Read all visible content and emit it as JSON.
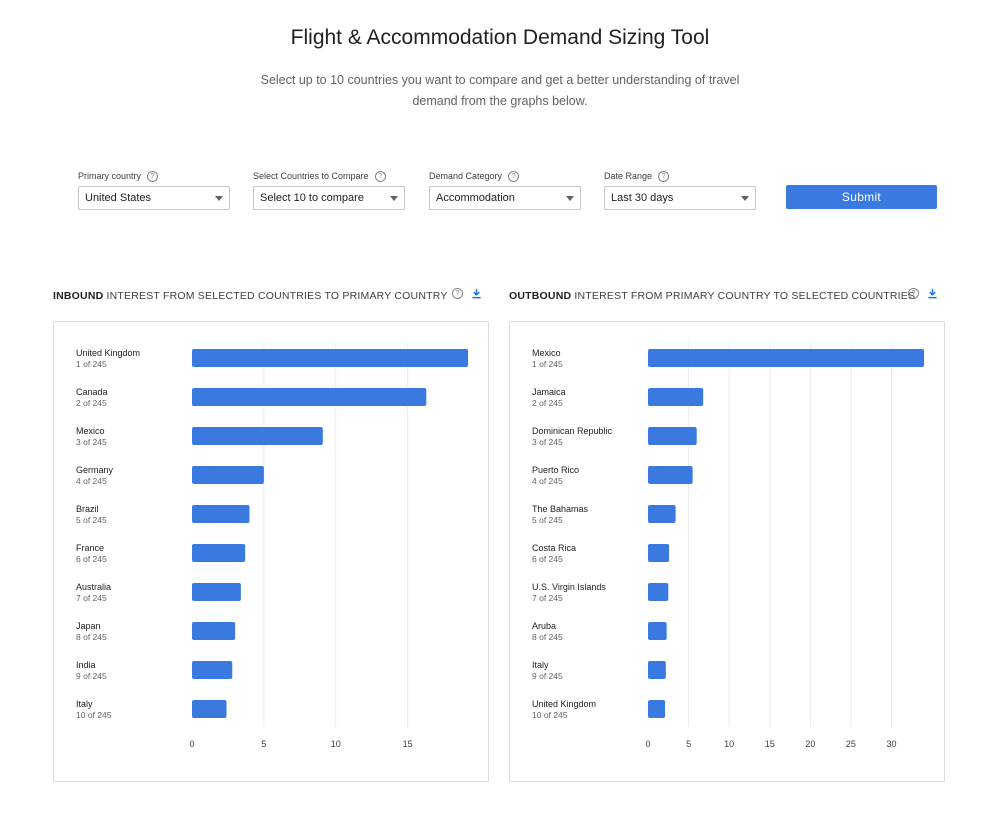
{
  "header": {
    "title": "Flight & Accommodation Demand Sizing Tool",
    "subtitle": "Select up to 10 countries you want to compare and get a better understanding of travel demand from the graphs below."
  },
  "filters": {
    "primary": {
      "label": "Primary country",
      "value": "United States"
    },
    "compare": {
      "label": "Select Countries to Compare",
      "value": "Select 10 to compare"
    },
    "category": {
      "label": "Demand Category",
      "value": "Accommodation"
    },
    "date": {
      "label": "Date Range",
      "value": "Last 30 days"
    },
    "submit_label": "Submit"
  },
  "colors": {
    "bar": "#3a7ae0",
    "grid": "#e8eaed"
  },
  "chart_data": [
    {
      "type": "bar",
      "orientation": "horizontal",
      "title_bold": "INBOUND",
      "title_rest": " INTEREST FROM SELECTED COUNTRIES TO PRIMARY COUNTRY",
      "categories": [
        "United Kingdom",
        "Canada",
        "Mexico",
        "Germany",
        "Brazil",
        "France",
        "Australia",
        "Japan",
        "India",
        "Italy"
      ],
      "ranks": [
        "1 of 245",
        "2 of 245",
        "3 of 245",
        "4 of 245",
        "5 of 245",
        "6 of 245",
        "7 of 245",
        "8 of 245",
        "9 of 245",
        "10 of 245"
      ],
      "values": [
        19.2,
        16.3,
        9.1,
        5.0,
        4.0,
        3.7,
        3.4,
        3.0,
        2.8,
        2.4
      ],
      "xticks": [
        0,
        5,
        10,
        15
      ],
      "xlim": [
        0,
        19.2
      ]
    },
    {
      "type": "bar",
      "orientation": "horizontal",
      "title_bold": "OUTBOUND",
      "title_rest": " INTEREST FROM PRIMARY COUNTRY TO SELECTED COUNTRIES",
      "categories": [
        "Mexico",
        "Jamaica",
        "Dominican Republic",
        "Puerto Rico",
        "The Bahamas",
        "Costa Rica",
        "U.S. Virgin Islands",
        "Aruba",
        "Italy",
        "United Kingdom"
      ],
      "ranks": [
        "1 of 245",
        "2 of 245",
        "3 of 245",
        "4 of 245",
        "5 of 245",
        "6 of 245",
        "7 of 245",
        "8 of 245",
        "9 of 245",
        "10 of 245"
      ],
      "values": [
        34.0,
        6.8,
        6.0,
        5.5,
        3.4,
        2.6,
        2.5,
        2.3,
        2.2,
        2.1
      ],
      "xticks": [
        0,
        5,
        10,
        15,
        20,
        25,
        30
      ],
      "xlim": [
        0,
        34.0
      ]
    }
  ]
}
